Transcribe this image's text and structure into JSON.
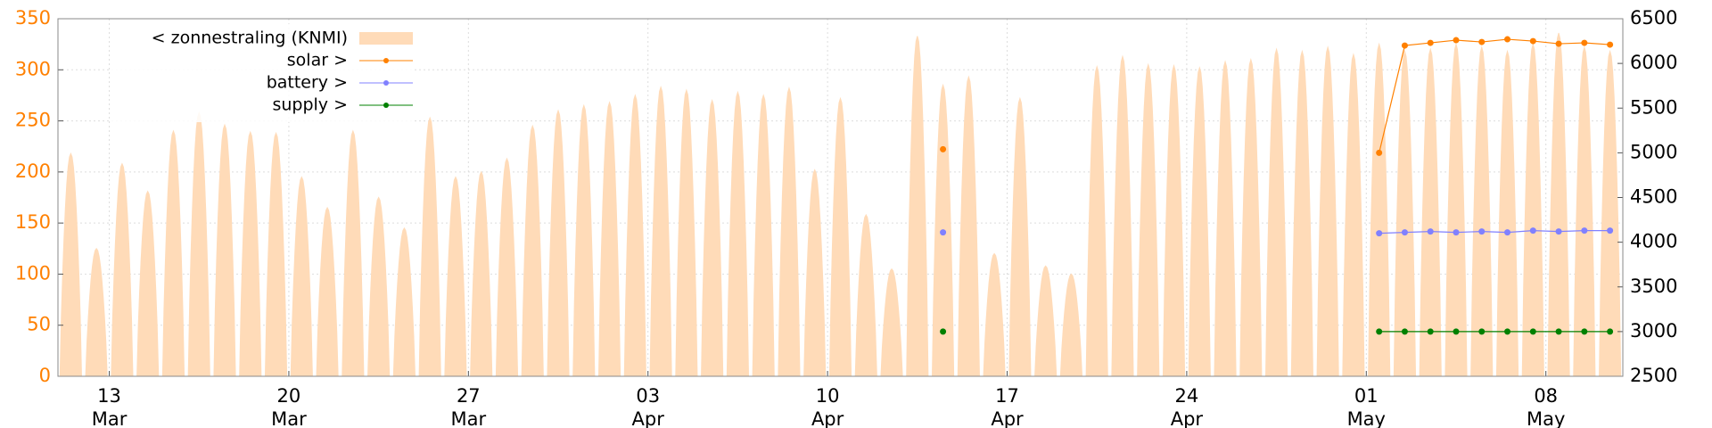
{
  "chart_data": {
    "type": "line",
    "x": [
      "11 Mar",
      "12 Mar",
      "13 Mar",
      "14 Mar",
      "15 Mar",
      "16 Mar",
      "17 Mar",
      "18 Mar",
      "19 Mar",
      "20 Mar",
      "21 Mar",
      "22 Mar",
      "23 Mar",
      "24 Mar",
      "25 Mar",
      "26 Mar",
      "27 Mar",
      "28 Mar",
      "29 Mar",
      "30 Mar",
      "31 Mar",
      "01 Apr",
      "02 Apr",
      "03 Apr",
      "04 Apr",
      "05 Apr",
      "06 Apr",
      "07 Apr",
      "08 Apr",
      "09 Apr",
      "10 Apr",
      "11 Apr",
      "12 Apr",
      "13 Apr",
      "14 Apr",
      "15 Apr",
      "16 Apr",
      "17 Apr",
      "18 Apr",
      "19 Apr",
      "20 Apr",
      "21 Apr",
      "22 Apr",
      "23 Apr",
      "24 Apr",
      "25 Apr",
      "26 Apr",
      "27 Apr",
      "28 Apr",
      "29 Apr",
      "30 Apr",
      "01 May",
      "02 May",
      "03 May",
      "04 May",
      "05 May",
      "06 May",
      "07 May",
      "08 May",
      "09 May",
      "10 May"
    ],
    "xticks": [
      "13 Mar",
      "20 Mar",
      "27 Mar",
      "03 Apr",
      "10 Apr",
      "17 Apr",
      "24 Apr",
      "01 May",
      "08 May"
    ],
    "ylim": [
      0,
      350
    ],
    "yticks": [
      0,
      50,
      100,
      150,
      200,
      250,
      300,
      350
    ],
    "y2lim": [
      2500,
      6500
    ],
    "y2ticks": [
      2500,
      3000,
      3500,
      4000,
      4500,
      5000,
      5500,
      6000,
      6500
    ],
    "grid": true,
    "legend": "upper left",
    "series": [
      {
        "name": "< zonnestraling (KNMI)",
        "type": "area",
        "color": "#ffdbb8",
        "values": [
          218,
          125,
          208,
          181,
          240,
          258,
          246,
          239,
          238,
          195,
          165,
          240,
          175,
          145,
          253,
          195,
          200,
          213,
          245,
          260,
          265,
          268,
          275,
          283,
          280,
          270,
          278,
          275,
          282,
          202,
          272,
          158,
          105,
          333,
          285,
          293,
          120,
          272,
          108,
          100,
          303,
          313,
          305,
          304,
          302,
          308,
          310,
          320,
          318,
          322,
          315,
          325,
          318,
          320,
          325,
          322,
          318,
          325,
          336,
          322,
          318
        ]
      },
      {
        "name": "solar >",
        "type": "line",
        "color": "#ff8000",
        "axis": "y2",
        "values": [
          null,
          null,
          null,
          null,
          null,
          null,
          null,
          null,
          null,
          null,
          null,
          null,
          null,
          null,
          null,
          null,
          null,
          null,
          null,
          null,
          null,
          null,
          null,
          null,
          null,
          null,
          null,
          null,
          null,
          null,
          null,
          null,
          null,
          null,
          5040,
          null,
          null,
          null,
          null,
          null,
          null,
          null,
          null,
          null,
          null,
          null,
          null,
          null,
          null,
          null,
          null,
          5000,
          6200,
          6230,
          6260,
          6240,
          6270,
          6250,
          6220,
          6230,
          6210
        ]
      },
      {
        "name": "battery >",
        "type": "line",
        "color": "#8080ff",
        "axis": "y2",
        "values": [
          null,
          null,
          null,
          null,
          null,
          null,
          null,
          null,
          null,
          null,
          null,
          null,
          null,
          null,
          null,
          null,
          null,
          null,
          null,
          null,
          null,
          null,
          null,
          null,
          null,
          null,
          null,
          null,
          null,
          null,
          null,
          null,
          null,
          null,
          4110,
          null,
          null,
          null,
          null,
          null,
          null,
          null,
          null,
          null,
          null,
          null,
          null,
          null,
          null,
          null,
          null,
          4100,
          4110,
          4120,
          4110,
          4120,
          4110,
          4130,
          4120,
          4130,
          4130
        ]
      },
      {
        "name": "supply >",
        "type": "line",
        "color": "#008000",
        "axis": "y2",
        "values": [
          null,
          null,
          null,
          null,
          null,
          null,
          null,
          null,
          null,
          null,
          null,
          null,
          null,
          null,
          null,
          null,
          null,
          null,
          null,
          null,
          null,
          null,
          null,
          null,
          null,
          null,
          null,
          null,
          null,
          null,
          null,
          null,
          null,
          null,
          3000,
          null,
          null,
          null,
          null,
          null,
          null,
          null,
          null,
          null,
          null,
          null,
          null,
          null,
          null,
          null,
          null,
          3000,
          3000,
          3000,
          3000,
          3000,
          3000,
          3000,
          3000,
          3000,
          3000
        ]
      }
    ]
  }
}
